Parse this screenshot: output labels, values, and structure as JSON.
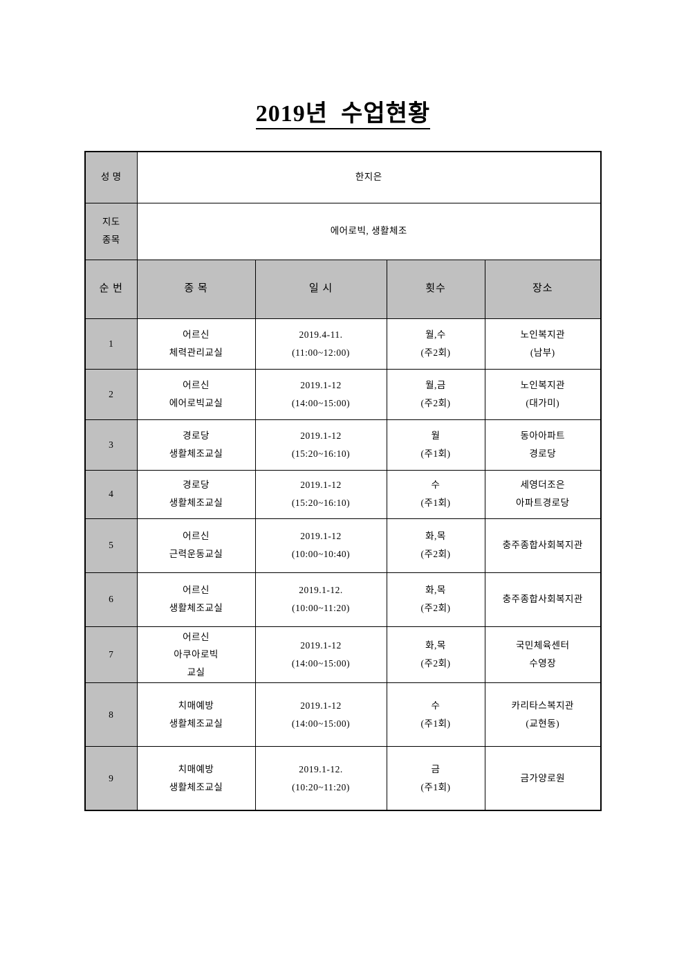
{
  "page": {
    "title": "2019년  수업현황"
  },
  "info": {
    "name_label": "성 명",
    "name_value": "한지은",
    "subject_label": [
      "지도",
      "종목"
    ],
    "subject_value": "에어로빅, 생활체조"
  },
  "table": {
    "headers": [
      "순 번",
      "종 목",
      "일 시",
      "횟수",
      "장소"
    ],
    "rows": [
      {
        "no": "1",
        "subject": [
          "어르신",
          "체력관리교실"
        ],
        "date": [
          "2019.4-11.",
          "(11:00~12:00)"
        ],
        "count": [
          "월,수",
          "(주2회)"
        ],
        "place": [
          "노인복지관",
          "(남부)"
        ],
        "large": false
      },
      {
        "no": "2",
        "subject": [
          "어르신",
          "에어로빅교실"
        ],
        "date": [
          "2019.1-12",
          "(14:00~15:00)"
        ],
        "count": [
          "월,금",
          "(주2회)"
        ],
        "place": [
          "노인복지관",
          "(대가미)"
        ],
        "large": false
      },
      {
        "no": "3",
        "subject": [
          "경로당",
          "생활체조교실"
        ],
        "date": [
          "2019.1-12",
          "(15:20~16:10)"
        ],
        "count": [
          "월",
          "(주1회)"
        ],
        "place": [
          "동아아파트",
          "경로당"
        ],
        "large": false
      },
      {
        "no": "4",
        "subject": [
          "경로당",
          "생활체조교실"
        ],
        "date": [
          "2019.1-12",
          "(15:20~16:10)"
        ],
        "count": [
          "수",
          "(주1회)"
        ],
        "place": [
          "세영더조은",
          "아파트경로당"
        ],
        "large": true
      },
      {
        "no": "5",
        "subject": [
          "어르신",
          "근력운동교실"
        ],
        "date": [
          "2019.1-12",
          "(10:00~10:40)"
        ],
        "count": [
          "화,목",
          "(주2회)"
        ],
        "place": [
          "충주종합사회복지관"
        ],
        "large": true
      },
      {
        "no": "6",
        "subject": [
          "어르신",
          "생활체조교실"
        ],
        "date": [
          "2019.1-12.",
          "(10:00~11:20)"
        ],
        "count": [
          "화,목",
          "(주2회)"
        ],
        "place": [
          "충주종합사회복지관"
        ],
        "large": true
      },
      {
        "no": "7",
        "subject": [
          "어르신",
          "아쿠아로빅",
          "교실"
        ],
        "date": [
          "2019.1-12",
          "(14:00~15:00)"
        ],
        "count": [
          "화,목",
          "(주2회)"
        ],
        "place": [
          "국민체육센터",
          "수영장"
        ],
        "large": false
      },
      {
        "no": "8",
        "subject": [
          "치매예방",
          "생활체조교실"
        ],
        "date": [
          "2019.1-12",
          "(14:00~15:00)"
        ],
        "count": [
          "수",
          "(주1회)"
        ],
        "place": [
          "카리타스복지관",
          "(교현동)"
        ],
        "large": true
      },
      {
        "no": "9",
        "subject": [
          "치매예방",
          "생활체조교실"
        ],
        "date": [
          "2019.1-12.",
          "(10:20~11:20)"
        ],
        "count": [
          "금",
          "(주1회)"
        ],
        "place": [
          "금가양로원"
        ],
        "large": true
      }
    ]
  },
  "colors": {
    "header_bg": "#c0c0c0",
    "border": "#000000",
    "text": "#000000",
    "page_bg": "#ffffff"
  }
}
